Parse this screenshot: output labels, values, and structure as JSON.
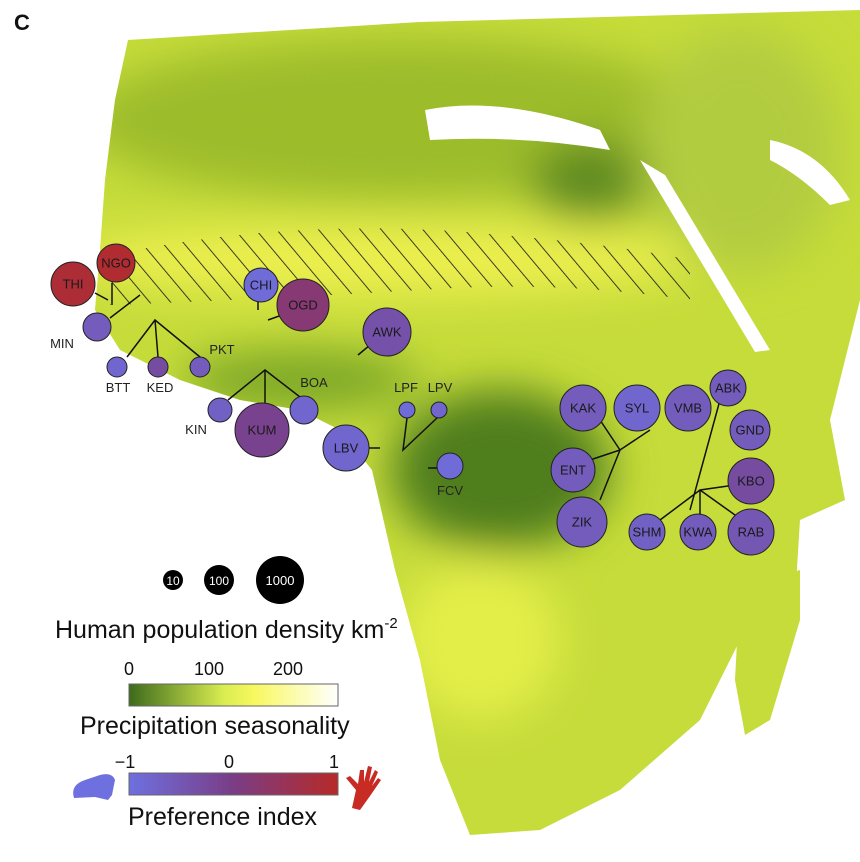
{
  "panel_label": "C",
  "sites": [
    {
      "code": "THI",
      "pref": 0.85
    },
    {
      "code": "NGO",
      "pref": 0.9
    },
    {
      "code": "MIN",
      "pref": -0.6
    },
    {
      "code": "BTT",
      "pref": -0.8
    },
    {
      "code": "KED",
      "pref": -0.3
    },
    {
      "code": "PKT",
      "pref": -0.6
    },
    {
      "code": "CHI",
      "pref": -0.9
    },
    {
      "code": "OGD",
      "pref": 0.2
    },
    {
      "code": "AWK",
      "pref": -0.4
    },
    {
      "code": "KIN",
      "pref": -0.7
    },
    {
      "code": "KUM",
      "pref": -0.1
    },
    {
      "code": "BOA",
      "pref": -0.8
    },
    {
      "code": "LBV",
      "pref": -0.8
    },
    {
      "code": "LPF",
      "pref": -0.9
    },
    {
      "code": "LPV",
      "pref": -0.8
    },
    {
      "code": "FCV",
      "pref": -0.9
    },
    {
      "code": "KAK",
      "pref": -0.6
    },
    {
      "code": "SYL",
      "pref": -0.8
    },
    {
      "code": "VMB",
      "pref": -0.6
    },
    {
      "code": "ABK",
      "pref": -0.6
    },
    {
      "code": "GND",
      "pref": -0.6
    },
    {
      "code": "ENT",
      "pref": -0.6
    },
    {
      "code": "KBO",
      "pref": -0.3
    },
    {
      "code": "ZIK",
      "pref": -0.6
    },
    {
      "code": "SHM",
      "pref": -0.7
    },
    {
      "code": "KWA",
      "pref": -0.6
    },
    {
      "code": "RAB",
      "pref": -0.5
    }
  ],
  "legend": {
    "population": {
      "sizes": [
        "10",
        "100",
        "1000"
      ],
      "title": "Human population density km",
      "title_sup": "-2"
    },
    "precipitation": {
      "ticks": [
        "0",
        "100",
        "200"
      ],
      "title": "Precipitation seasonality",
      "colors": [
        "#3d6a1c",
        "#f8f860",
        "#ffffff"
      ]
    },
    "preference": {
      "ticks": [
        "−1",
        "0",
        "1"
      ],
      "title": "Preference index",
      "colors": [
        "#6e70e0",
        "#b62a28"
      ],
      "left_icon": "rodent-icon",
      "right_icon": "human-hand-icon"
    }
  },
  "colors": {
    "blue": "#6e6ad8",
    "red": "#b32a2a",
    "land": "#c6dc3a",
    "hatch": "#111111"
  }
}
